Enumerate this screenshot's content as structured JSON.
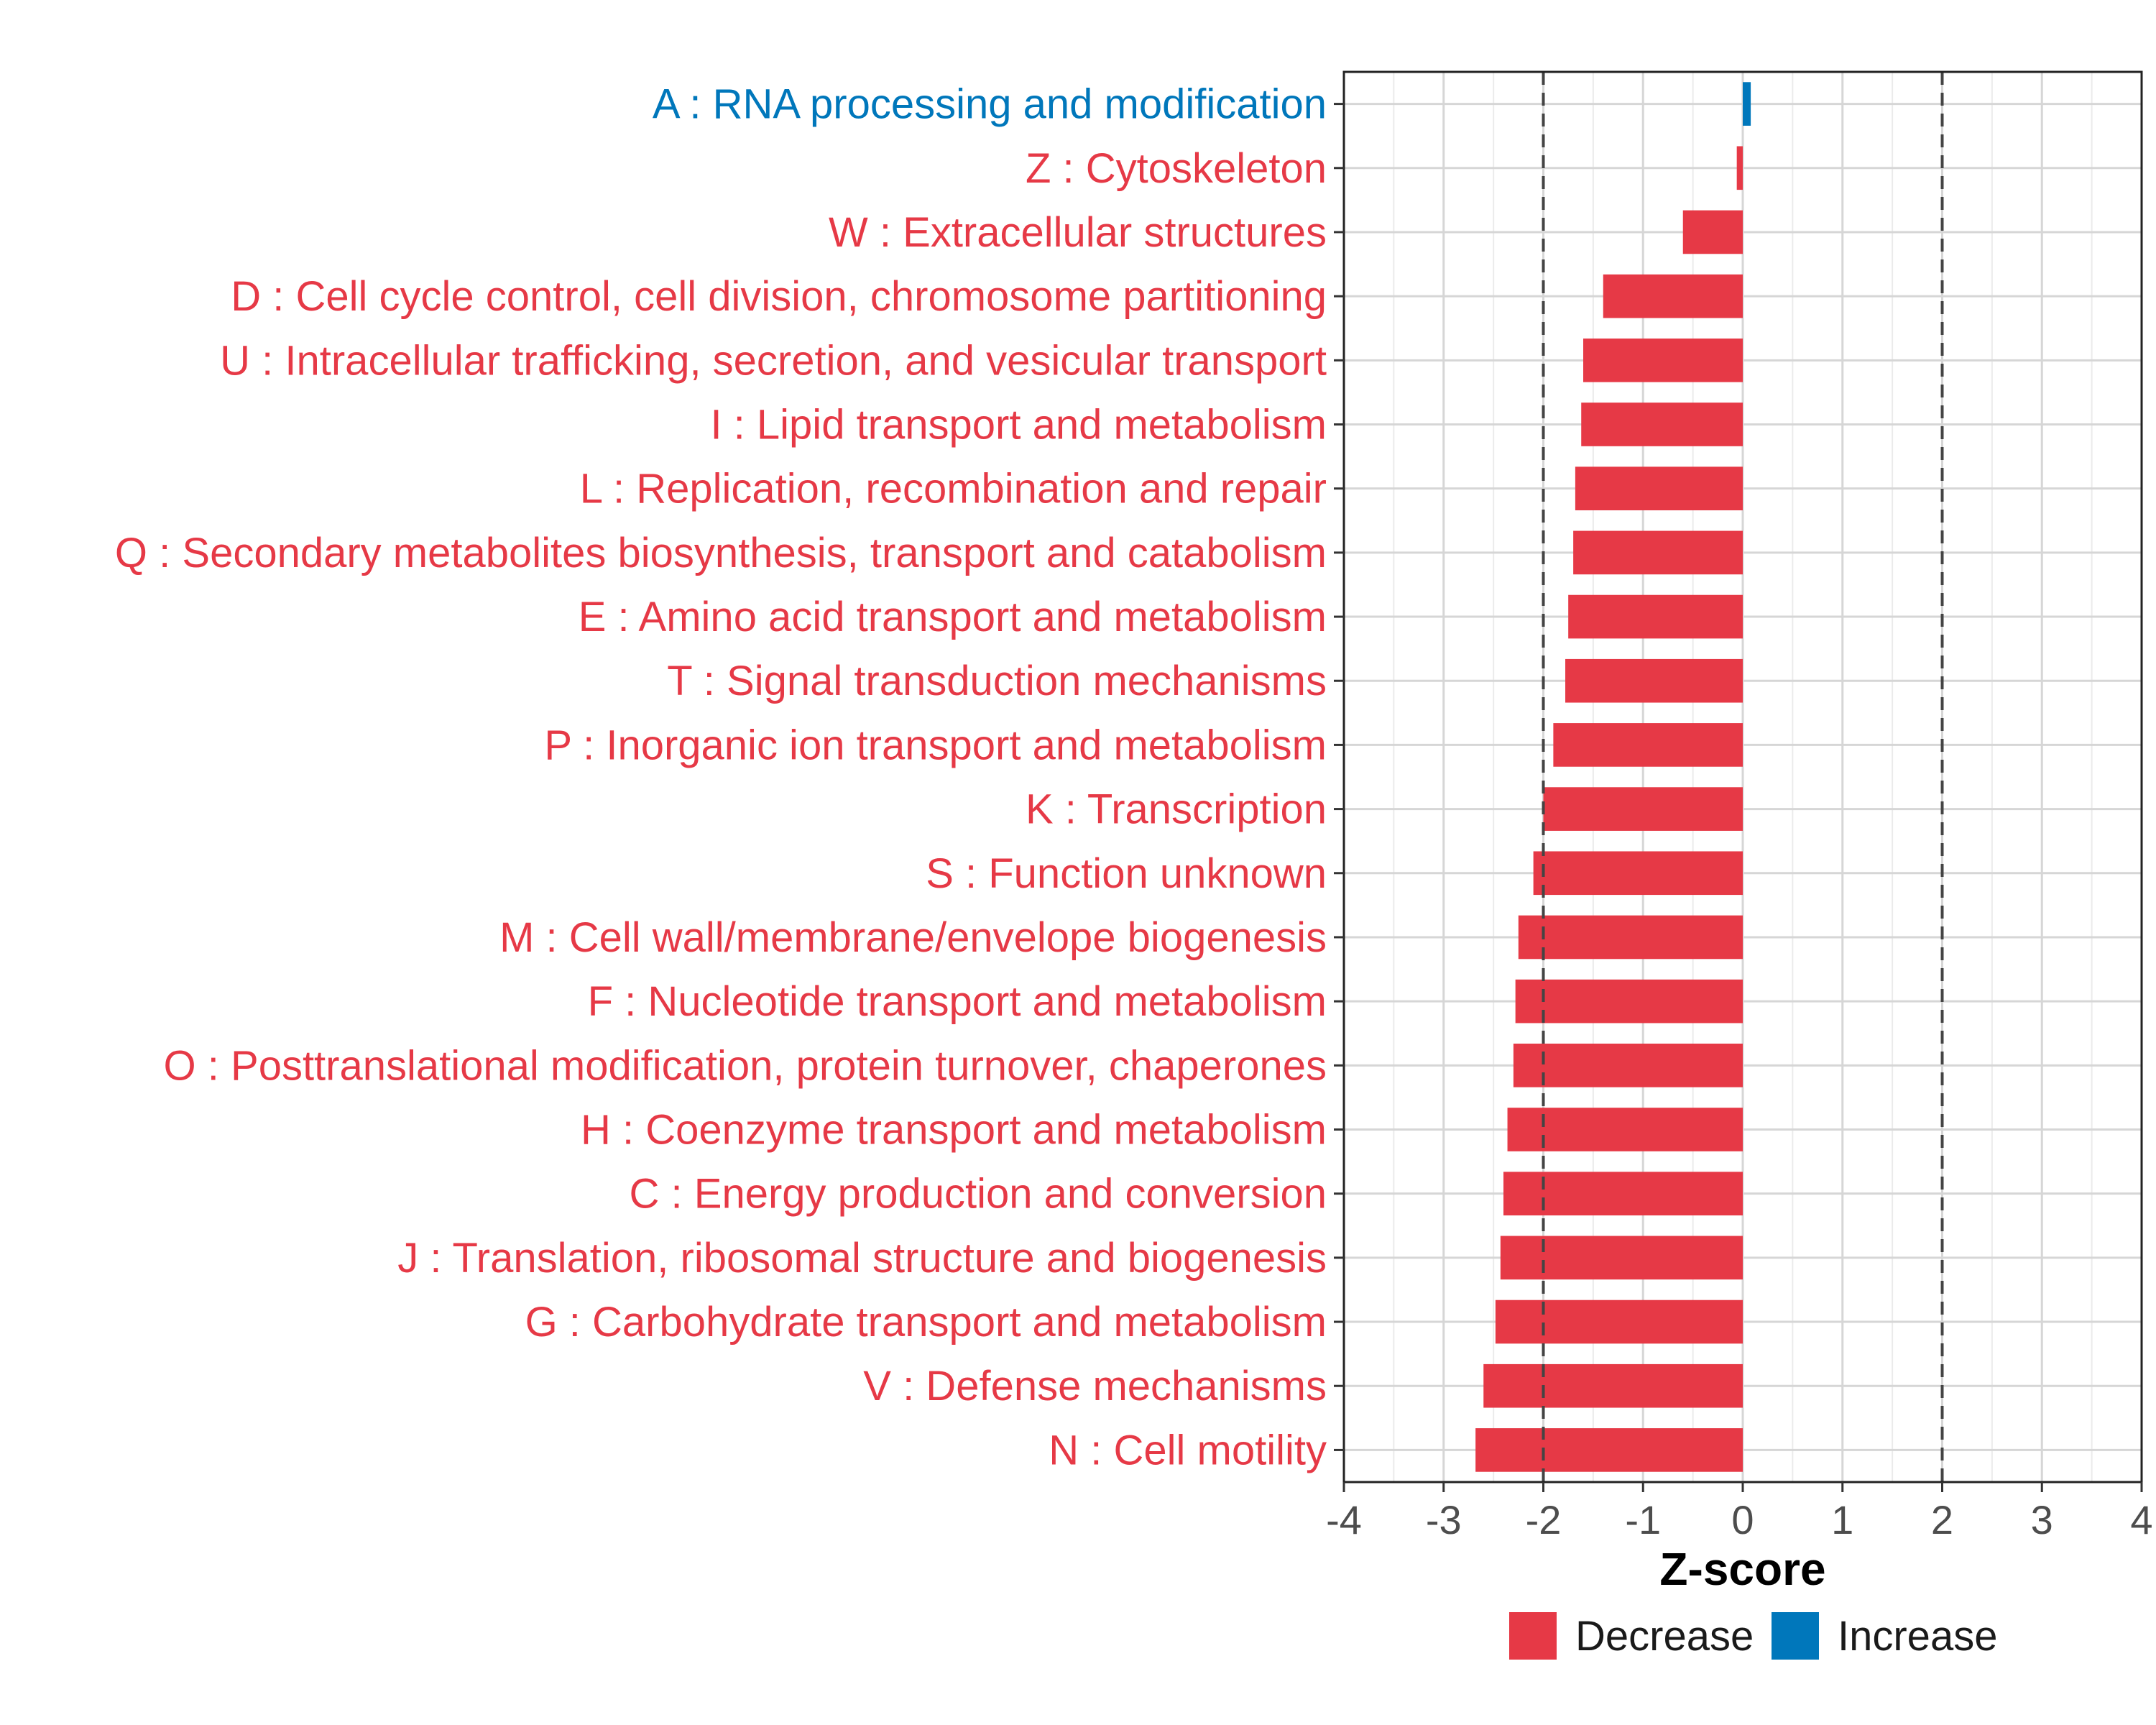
{
  "chart_data": {
    "type": "bar",
    "orientation": "horizontal",
    "title": "",
    "xlabel": "Z-score",
    "ylabel": "",
    "xlim": [
      -4,
      4
    ],
    "x_ticks": [
      -4,
      -3,
      -2,
      -1,
      0,
      1,
      2,
      3,
      4
    ],
    "x_tick_labels": [
      "-4",
      "-3",
      "-2",
      "-1",
      "0",
      "1",
      "2",
      "3",
      "4"
    ],
    "reference_lines": [
      -2,
      2
    ],
    "grid": true,
    "legend_position": "bottom",
    "categories": [
      "A : RNA processing and modification",
      "Z : Cytoskeleton",
      "W : Extracellular structures",
      "D : Cell cycle control, cell division, chromosome partitioning",
      "U : Intracellular trafficking, secretion, and vesicular transport",
      "I : Lipid transport and metabolism",
      "L : Replication, recombination and repair",
      "Q : Secondary metabolites biosynthesis, transport and catabolism",
      "E : Amino acid transport and metabolism",
      "T : Signal transduction mechanisms",
      "P : Inorganic ion transport and metabolism",
      "K : Transcription",
      "S : Function unknown",
      "M : Cell wall/membrane/envelope biogenesis",
      "F : Nucleotide transport and metabolism",
      "O : Posttranslational modification, protein turnover, chaperones",
      "H : Coenzyme transport and metabolism",
      "C : Energy production and conversion",
      "J : Translation, ribosomal structure and biogenesis",
      "G : Carbohydrate transport and metabolism",
      "V : Defense mechanisms",
      "N : Cell motility"
    ],
    "values": [
      0.08,
      -0.06,
      -0.6,
      -1.4,
      -1.6,
      -1.62,
      -1.68,
      -1.7,
      -1.75,
      -1.78,
      -1.9,
      -2.0,
      -2.1,
      -2.25,
      -2.28,
      -2.3,
      -2.36,
      -2.4,
      -2.43,
      -2.48,
      -2.6,
      -2.68
    ],
    "groups": [
      "Increase",
      "Decrease",
      "Decrease",
      "Decrease",
      "Decrease",
      "Decrease",
      "Decrease",
      "Decrease",
      "Decrease",
      "Decrease",
      "Decrease",
      "Decrease",
      "Decrease",
      "Decrease",
      "Decrease",
      "Decrease",
      "Decrease",
      "Decrease",
      "Decrease",
      "Decrease",
      "Decrease",
      "Decrease"
    ],
    "legend": [
      {
        "label": "Decrease",
        "color": "#e63946"
      },
      {
        "label": "Increase",
        "color": "#0077bb"
      }
    ]
  }
}
